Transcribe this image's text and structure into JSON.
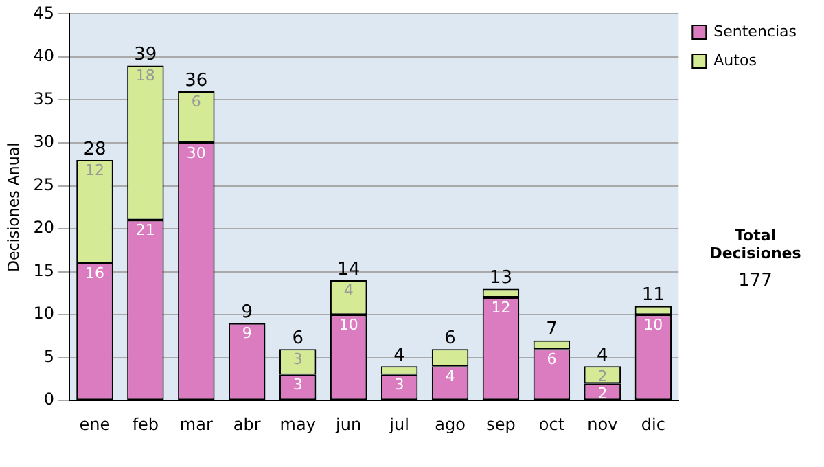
{
  "chart_data": {
    "type": "bar",
    "stacked": true,
    "ylabel": "Decisiones Anual",
    "categories": [
      "ene",
      "feb",
      "mar",
      "abr",
      "may",
      "jun",
      "jul",
      "ago",
      "sep",
      "oct",
      "nov",
      "dic"
    ],
    "series": [
      {
        "name": "Sentencias",
        "color": "#dc7cc0",
        "values": [
          16,
          21,
          30,
          9,
          3,
          10,
          3,
          4,
          12,
          6,
          2,
          10
        ],
        "value_labels": [
          "16",
          "21",
          "30",
          "9",
          "3",
          "10",
          "3",
          "4",
          "12",
          "6",
          "2",
          "10"
        ]
      },
      {
        "name": "Autos",
        "color": "#d4ea94",
        "values": [
          12,
          18,
          6,
          0,
          3,
          4,
          1,
          2,
          1,
          1,
          2,
          1
        ],
        "value_labels": [
          "12",
          "18",
          "6",
          null,
          "3",
          "4",
          null,
          null,
          null,
          null,
          "2",
          null
        ]
      }
    ],
    "totals": [
      "28",
      "39",
      "36",
      "9",
      "6",
      "14",
      "4",
      "6",
      "13",
      "7",
      "4",
      "11"
    ],
    "ylim": [
      0,
      45
    ],
    "yticks": [
      0,
      5,
      10,
      15,
      20,
      25,
      30,
      35,
      40,
      45
    ],
    "grid": "y",
    "legend": "right",
    "annotations": [
      "Total Decisiones",
      "177"
    ]
  }
}
